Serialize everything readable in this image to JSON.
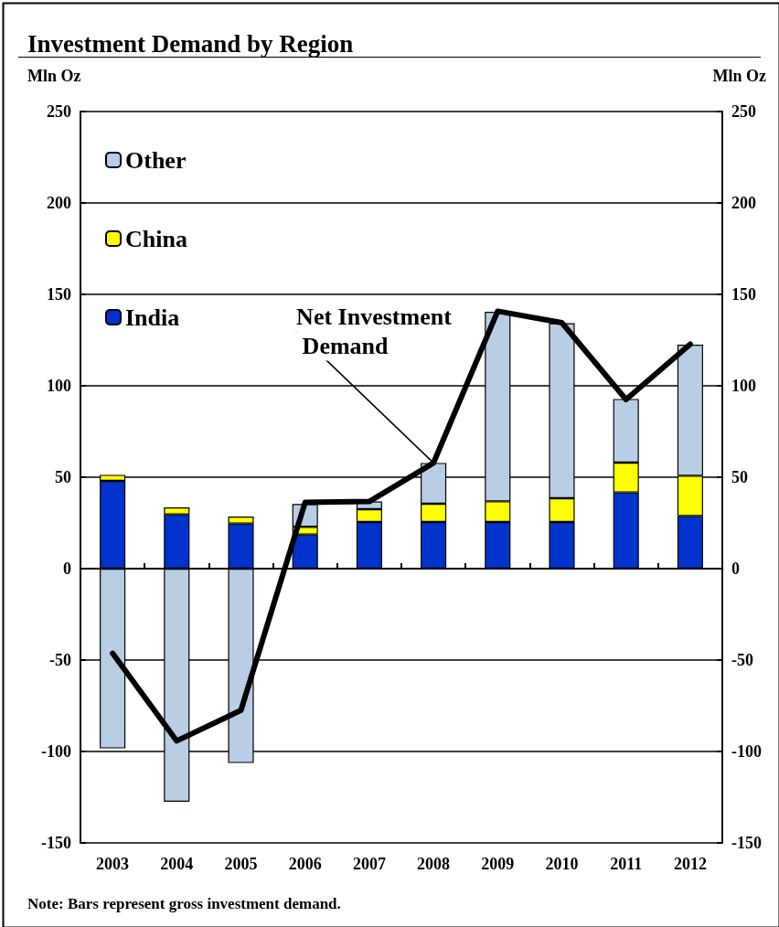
{
  "chart_data": {
    "type": "bar",
    "title": "Investment Demand by Region",
    "ylabel": "Mln Oz",
    "y2label": "Mln Oz",
    "categories": [
      "2003",
      "2004",
      "2005",
      "2006",
      "2007",
      "2008",
      "2009",
      "2010",
      "2011",
      "2012"
    ],
    "stacked": true,
    "series": [
      {
        "name": "India",
        "color": "#0033cc",
        "values": [
          48,
          29.7,
          24.7,
          18.7,
          25.5,
          25.5,
          25.5,
          25.5,
          41.7,
          28.8
        ]
      },
      {
        "name": "China",
        "color": "#ffff00",
        "values": [
          3.3,
          3.8,
          3.8,
          4.2,
          7,
          10,
          11.3,
          13,
          16.3,
          22
        ]
      },
      {
        "name": "Other",
        "color": "#b9cde5",
        "values": [
          -98.3,
          -127.5,
          -106.3,
          12.5,
          4.2,
          22.3,
          103.7,
          95.7,
          34.8,
          71.7
        ]
      },
      {
        "name": "Net Investment Demand",
        "type": "line",
        "color": "#000000",
        "values": [
          -46.3,
          -94.2,
          -77.5,
          36.2,
          36.7,
          57.8,
          140.8,
          134.5,
          92.5,
          122.8
        ]
      }
    ],
    "ylim": [
      -150,
      250
    ],
    "yticks": [
      -150,
      -100,
      -50,
      0,
      50,
      100,
      150,
      200,
      250
    ],
    "y2lim": [
      -150,
      250
    ],
    "y2ticks": [
      -150,
      -100,
      -50,
      0,
      50,
      100,
      150,
      200,
      250
    ],
    "grid": "y",
    "legend": "top left",
    "marker": "none",
    "line_style": "solid",
    "annotations": [
      "Note: Bars represent gross investment demand."
    ]
  }
}
